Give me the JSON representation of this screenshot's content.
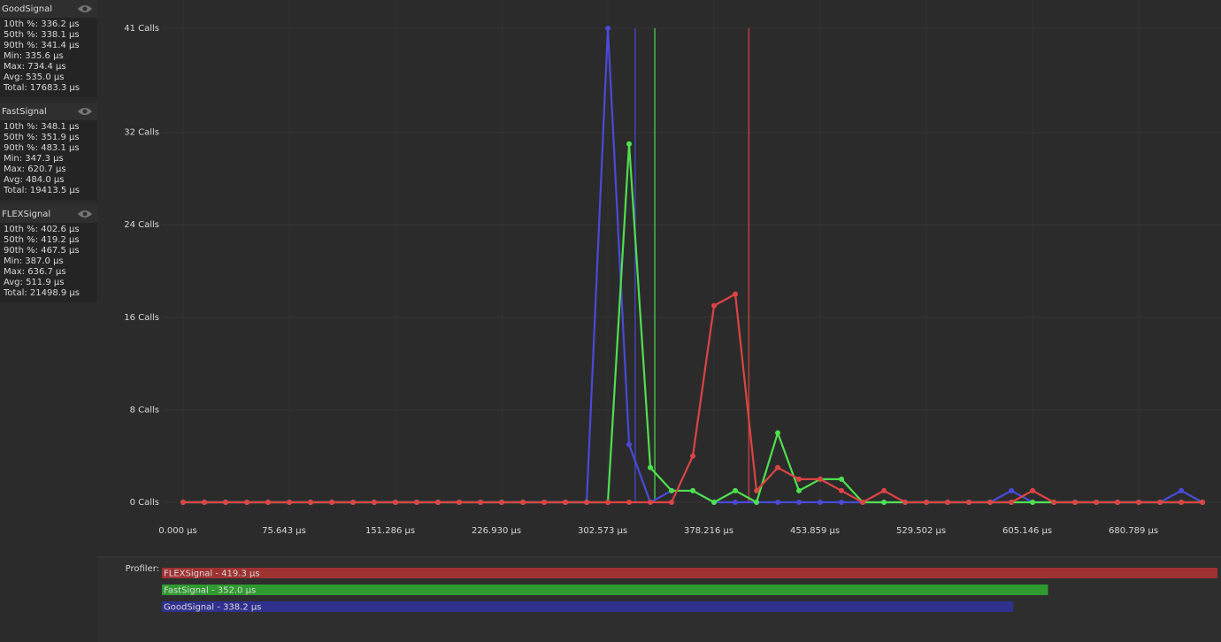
{
  "chart_data": {
    "type": "line",
    "x": [
      0,
      15.129,
      30.257,
      45.386,
      60.514,
      75.643,
      90.772,
      105.9,
      121.029,
      136.157,
      151.286,
      166.415,
      181.543,
      196.672,
      211.8,
      226.929,
      242.058,
      257.186,
      272.315,
      287.444,
      302.572,
      317.701,
      332.829,
      347.958,
      363.087,
      378.215,
      393.344,
      408.472,
      423.601,
      438.729,
      453.858,
      468.987,
      484.115,
      499.244,
      514.372,
      529.501,
      544.63,
      559.758,
      574.887,
      590.015,
      605.144,
      620.273,
      635.401,
      650.53,
      665.658,
      680.787,
      695.916,
      711.044,
      726.173
    ],
    "series": [
      {
        "name": "GoodSignal",
        "color": "#4a4ad8",
        "marker": 322,
        "values": [
          0,
          0,
          0,
          0,
          0,
          0,
          0,
          0,
          0,
          0,
          0,
          0,
          0,
          0,
          0,
          0,
          0,
          0,
          0,
          0,
          41,
          5,
          0,
          1,
          1,
          0,
          0,
          0,
          0,
          0,
          0,
          0,
          0,
          0,
          0,
          0,
          0,
          0,
          0,
          1,
          0,
          0,
          0,
          0,
          0,
          0,
          0,
          1,
          0
        ]
      },
      {
        "name": "FastSignal",
        "color": "#4ee04e",
        "marker": 336,
        "values": [
          0,
          0,
          0,
          0,
          0,
          0,
          0,
          0,
          0,
          0,
          0,
          0,
          0,
          0,
          0,
          0,
          0,
          0,
          0,
          0,
          0,
          31,
          3,
          1,
          1,
          0,
          1,
          0,
          6,
          1,
          2,
          2,
          0,
          0,
          0,
          0,
          0,
          0,
          0,
          0,
          0,
          0,
          0,
          0,
          0,
          0,
          0,
          0,
          0
        ]
      },
      {
        "name": "FLEXSignal",
        "color": "#dc4444",
        "marker": 403,
        "values": [
          0,
          0,
          0,
          0,
          0,
          0,
          0,
          0,
          0,
          0,
          0,
          0,
          0,
          0,
          0,
          0,
          0,
          0,
          0,
          0,
          0,
          0,
          0,
          0,
          4,
          17,
          18,
          1,
          3,
          2,
          2,
          1,
          0,
          1,
          0,
          0,
          0,
          0,
          0,
          0,
          1,
          0,
          0,
          0,
          0,
          0,
          0,
          0,
          0
        ]
      }
    ],
    "xlim": [
      0,
      740
    ],
    "ylim": [
      0,
      41
    ],
    "xticks": [
      {
        "value": 0,
        "label": "0.000 µs"
      },
      {
        "value": 75.643,
        "label": "75.643 µs"
      },
      {
        "value": 151.286,
        "label": "151.286 µs"
      },
      {
        "value": 226.93,
        "label": "226.930 µs"
      },
      {
        "value": 302.573,
        "label": "302.573 µs"
      },
      {
        "value": 378.216,
        "label": "378.216 µs"
      },
      {
        "value": 453.859,
        "label": "453.859 µs"
      },
      {
        "value": 529.502,
        "label": "529.502 µs"
      },
      {
        "value": 605.146,
        "label": "605.146 µs"
      },
      {
        "value": 680.789,
        "label": "680.789 µs"
      }
    ],
    "yticks": [
      {
        "value": 0,
        "label": "0 Calls"
      },
      {
        "value": 8,
        "label": "8 Calls"
      },
      {
        "value": 16,
        "label": "16 Calls"
      },
      {
        "value": 24,
        "label": "24 Calls"
      },
      {
        "value": 32,
        "label": "32 Calls"
      },
      {
        "value": 41,
        "label": "41 Calls"
      }
    ],
    "grid": true
  },
  "sidebar": {
    "groups": [
      {
        "stats": [
          "10th %: 336.2 µs",
          "50th %: 338.1 µs",
          "90th %: 341.4 µs",
          "Min: 335.6 µs",
          "Max: 734.4 µs",
          "Avg: 535.0 µs",
          "Total: 17683.3 µs"
        ]
      },
      {
        "stats": [
          "10th %: 348.1 µs",
          "50th %: 351.9 µs",
          "90th %: 483.1 µs",
          "Min: 347.3 µs",
          "Max: 620.7 µs",
          "Avg: 484.0 µs",
          "Total: 19413.5 µs"
        ]
      },
      {
        "stats": [
          "10th %: 402.6 µs",
          "50th %: 419.2 µs",
          "90th %: 467.5 µs",
          "Min: 387.0 µs",
          "Max: 636.7 µs",
          "Avg: 511.9 µs",
          "Total: 21498.9 µs"
        ]
      }
    ]
  },
  "profiler": {
    "title": "Profiler:",
    "bars": [
      {
        "label": "FLEXSignal - 419.3 µs",
        "value": 419.3,
        "color": "#9e3232"
      },
      {
        "label": "FastSignal - 352.0 µs",
        "value": 352.0,
        "color": "#2f9a2f"
      },
      {
        "label": "GoodSignal - 338.2 µs",
        "value": 338.2,
        "color": "#30308e"
      }
    ]
  }
}
